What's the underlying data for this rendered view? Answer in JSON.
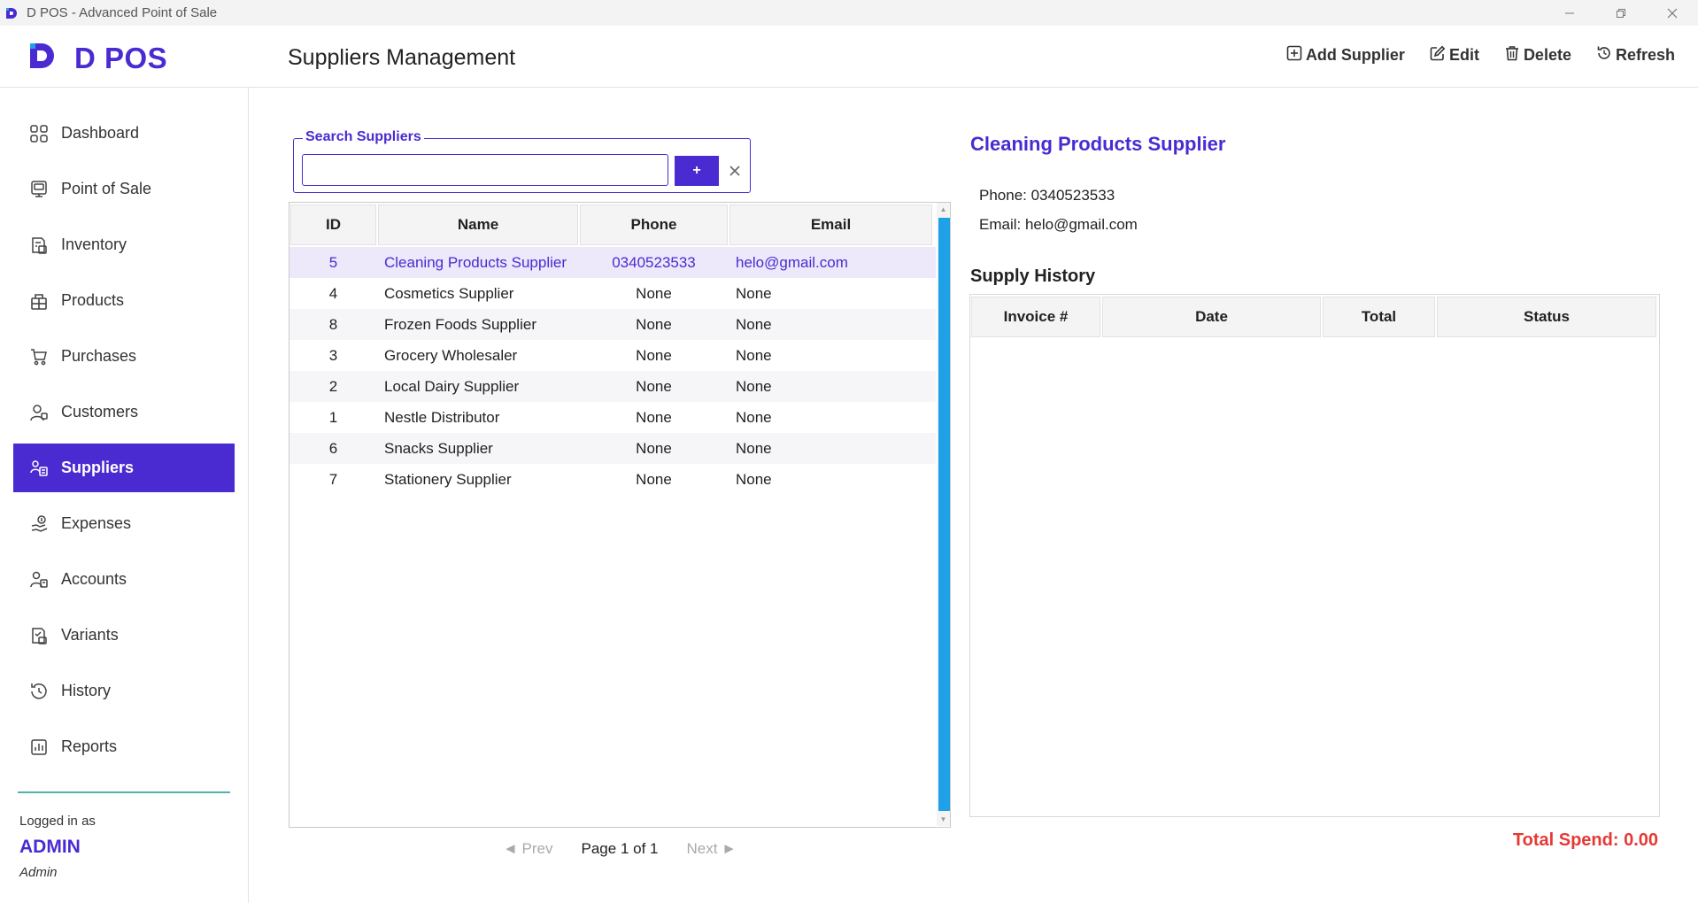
{
  "window": {
    "title": "D POS - Advanced Point of Sale",
    "controls": [
      "minimize-icon",
      "restore-icon",
      "close-icon"
    ]
  },
  "brand": {
    "name": "D POS",
    "accent": "#4a2bd1"
  },
  "header": {
    "page_title": "Suppliers Management",
    "actions": {
      "add": "Add Supplier",
      "edit": "Edit",
      "delete": "Delete",
      "refresh": "Refresh"
    }
  },
  "sidebar": {
    "items": [
      {
        "label": "Dashboard",
        "icon": "grid-icon"
      },
      {
        "label": "Point of Sale",
        "icon": "pos-terminal-icon"
      },
      {
        "label": "Inventory",
        "icon": "inventory-icon"
      },
      {
        "label": "Products",
        "icon": "products-icon"
      },
      {
        "label": "Purchases",
        "icon": "cart-icon"
      },
      {
        "label": "Customers",
        "icon": "customers-icon"
      },
      {
        "label": "Suppliers",
        "icon": "suppliers-icon",
        "active": true
      },
      {
        "label": "Expenses",
        "icon": "expenses-icon"
      },
      {
        "label": "Accounts",
        "icon": "accounts-icon"
      },
      {
        "label": "Variants",
        "icon": "variants-icon"
      },
      {
        "label": "History",
        "icon": "history-icon"
      },
      {
        "label": "Reports",
        "icon": "reports-icon"
      }
    ],
    "logged_in_label": "Logged in as",
    "user": "ADMIN",
    "role": "Admin"
  },
  "search": {
    "legend": "Search Suppliers",
    "value": "",
    "placeholder": "",
    "add_label": "+"
  },
  "suppliers_table": {
    "columns": [
      "ID",
      "Name",
      "Phone",
      "Email"
    ],
    "rows": [
      {
        "id": "5",
        "name": "Cleaning Products Supplier",
        "phone": "0340523533",
        "email": "helo@gmail.com",
        "selected": true
      },
      {
        "id": "4",
        "name": "Cosmetics Supplier",
        "phone": "None",
        "email": "None"
      },
      {
        "id": "8",
        "name": "Frozen Foods Supplier",
        "phone": "None",
        "email": "None"
      },
      {
        "id": "3",
        "name": "Grocery Wholesaler",
        "phone": "None",
        "email": "None"
      },
      {
        "id": "2",
        "name": "Local Dairy Supplier",
        "phone": "None",
        "email": "None"
      },
      {
        "id": "1",
        "name": "Nestle Distributor",
        "phone": "None",
        "email": "None"
      },
      {
        "id": "6",
        "name": "Snacks Supplier",
        "phone": "None",
        "email": "None"
      },
      {
        "id": "7",
        "name": "Stationery Supplier",
        "phone": "None",
        "email": "None"
      }
    ]
  },
  "pagination": {
    "prev": "◄ Prev",
    "page_info": "Page 1 of 1",
    "next": "Next ►"
  },
  "detail": {
    "name": "Cleaning Products Supplier",
    "phone": "Phone: 0340523533",
    "email": "Email: helo@gmail.com",
    "history_title": "Supply History",
    "history_columns": [
      "Invoice #",
      "Date",
      "Total",
      "Status"
    ],
    "history_rows": [],
    "total_spend": "Total Spend: 0.00"
  },
  "colors": {
    "accent": "#4a2bd1",
    "scroll_thumb": "#1ea1e6",
    "total_spend": "#e53935",
    "divider": "#4fb3a9"
  }
}
